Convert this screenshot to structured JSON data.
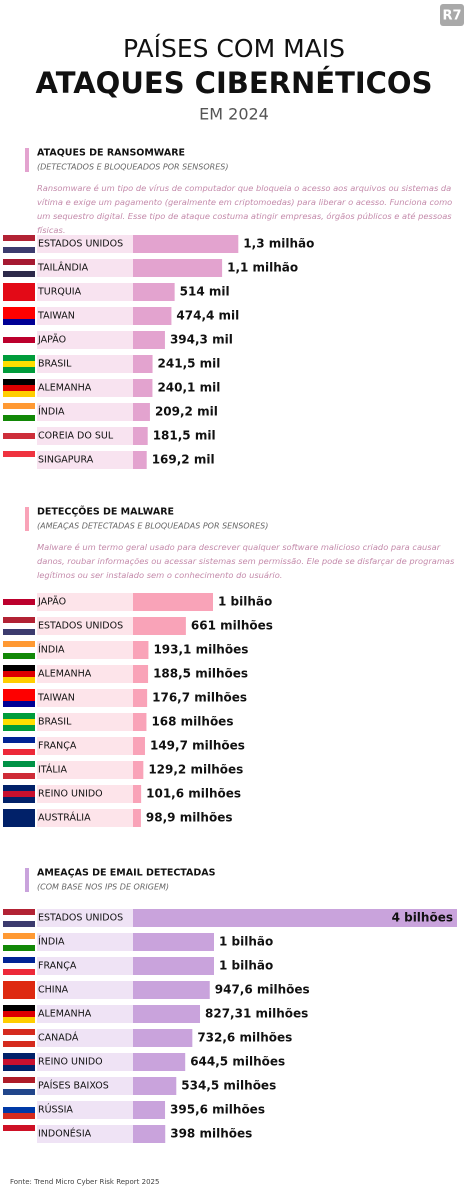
{
  "header": {
    "logo": "R7",
    "title_line1": "PAÍSES COM MAIS",
    "title_line2": "ATAQUES CIBERNÉTICOS",
    "title_line3": "EM 2024"
  },
  "chart_data": [
    {
      "type": "bar",
      "title": "ATAQUES DE RANSOMWARE",
      "subtitle": "(DETECTADOS E BLOQUEADOS POR SENSORES)",
      "description": "Ransomware é um tipo de vírus de computador que bloqueia o acesso aos arquivos ou sistemas da vítima e exige um pagamento (geralmente em criptomoedas) para liberar o acesso. Funciona como um sequestro digital. Esse tipo de ataque costuma atingir empresas, órgãos públicos e até pessoas físicas.",
      "color": "#e3a3cf",
      "categories": [
        "ESTADOS UNIDOS",
        "TAILÂNDIA",
        "TURQUIA",
        "TAIWAN",
        "JAPÃO",
        "BRASIL",
        "ALEMANHA",
        "ÍNDIA",
        "COREIA DO SUL",
        "SINGAPURA"
      ],
      "values": [
        1300000,
        1100000,
        514000,
        474400,
        394300,
        241500,
        240100,
        209200,
        181500,
        169200
      ],
      "value_labels": [
        "1,3 milhão",
        "1,1 milhão",
        "514 mil",
        "474,4 mil",
        "394,3 mil",
        "241,5 mil",
        "240,1 mil",
        "209,2 mil",
        "181,5 mil",
        "169,2 mil"
      ]
    },
    {
      "type": "bar",
      "title": "DETECÇÕES DE MALWARE",
      "subtitle": "(AMEAÇAS DETECTADAS E BLOQUEADAS POR SENSORES)",
      "description": "Malware é um termo geral usado para descrever qualquer software malicioso criado para causar danos, roubar informações ou acessar sistemas sem permissão. Ele pode se disfarçar de programas legítimos ou ser instalado sem o conhecimento do usuário.",
      "color": "#f9a3b8",
      "categories": [
        "JAPÃO",
        "ESTADOS UNIDOS",
        "ÍNDIA",
        "ALEMANHA",
        "TAIWAN",
        "BRASIL",
        "FRANÇA",
        "ITÁLIA",
        "REINO UNIDO",
        "AUSTRÁLIA"
      ],
      "values": [
        1000000000,
        661000000,
        193100000,
        188500000,
        176700000,
        168000000,
        149700000,
        129200000,
        101600000,
        98900000
      ],
      "value_labels": [
        "1 bilhão",
        "661 milhões",
        "193,1 milhões",
        "188,5 milhões",
        "176,7 milhões",
        "168 milhões",
        "149,7 milhões",
        "129,2 milhões",
        "101,6 milhões",
        "98,9 milhões"
      ]
    },
    {
      "type": "bar",
      "title": "AMEAÇAS DE EMAIL DETECTADAS",
      "subtitle": "(COM BASE NOS IPS DE ORIGEM)",
      "color": "#c9a3dc",
      "categories": [
        "ESTADOS UNIDOS",
        "ÍNDIA",
        "FRANÇA",
        "CHINA",
        "ALEMANHA",
        "CANADÁ",
        "REINO UNIDO",
        "PAÍSES BAIXOS",
        "RÚSSIA",
        "INDONÉSIA"
      ],
      "values": [
        4000000000,
        1000000000,
        1000000000,
        947600000,
        827310000,
        732600000,
        644500000,
        534500000,
        395600000,
        398000000
      ],
      "value_labels": [
        "4 bilhões",
        "1 bilhão",
        "1 bilhão",
        "947,6 milhões",
        "827,31 milhões",
        "732,6 milhões",
        "644,5 milhões",
        "534,5 milhões",
        "395,6 milhões",
        "398 milhões"
      ]
    }
  ],
  "footer": {
    "source": "Fonte: Trend Micro Cyber Risk Report 2025"
  }
}
